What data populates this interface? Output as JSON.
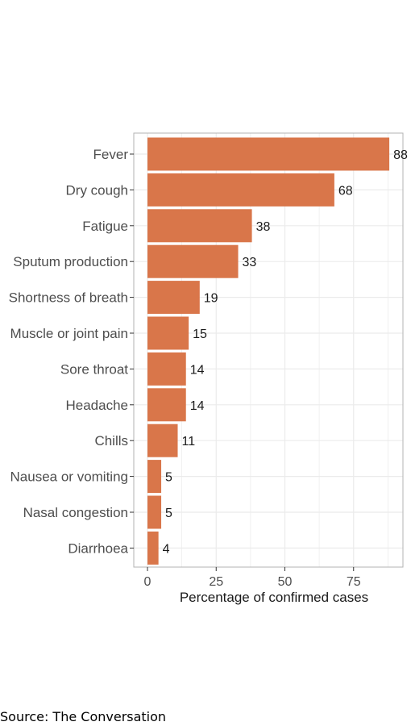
{
  "chart_data": {
    "type": "bar",
    "orientation": "horizontal",
    "categories": [
      "Fever",
      "Dry cough",
      "Fatigue",
      "Sputum production",
      "Shortness of breath",
      "Muscle or joint pain",
      "Sore throat",
      "Headache",
      "Chills",
      "Nausea or vomiting",
      "Nasal congestion",
      "Diarrhoea"
    ],
    "values": [
      88,
      68,
      38,
      33,
      19,
      15,
      14,
      14,
      11,
      5,
      5,
      4
    ],
    "xlabel": "Percentage of confirmed cases",
    "ylabel": "",
    "xlim": [
      -5,
      92
    ],
    "xticks": [
      0,
      25,
      50,
      75
    ],
    "grid": true,
    "colors": {
      "bar": "#d9764a",
      "grid": "#ebebeb",
      "panel_border": "#b3b3b3"
    }
  },
  "source": "Source: The Conversation"
}
